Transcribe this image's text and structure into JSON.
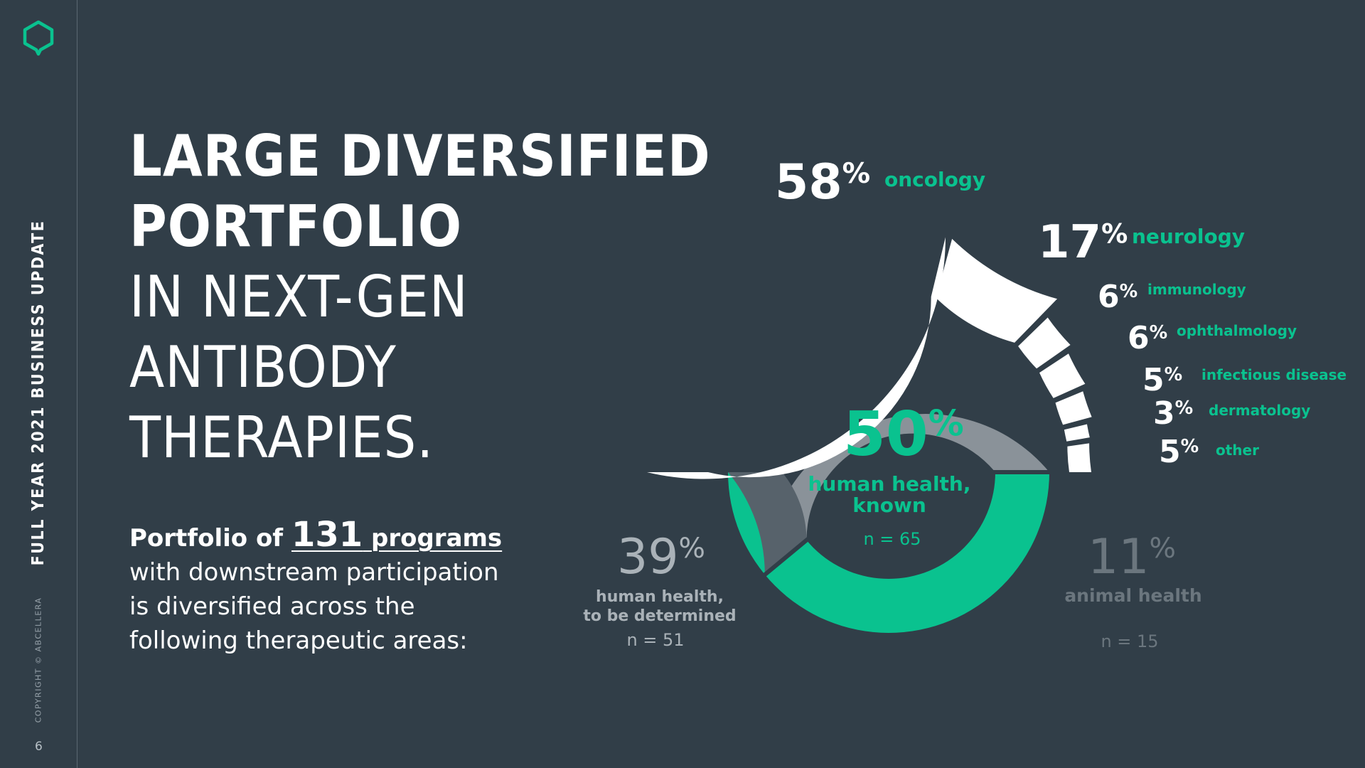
{
  "sidebar": {
    "vertical_title": "FULL YEAR 2021 BUSINESS UPDATE",
    "copyright": "COPYRIGHT © ABCELLERA",
    "page_number": "6",
    "logo_icon": "hexagon-logo-icon",
    "accent": "#0ac28f"
  },
  "heading": {
    "line1": "LARGE DIVERSIFIED",
    "line2": "PORTFOLIO",
    "line3": "IN NEXT-GEN",
    "line4": "ANTIBODY",
    "line5": "THERAPIES."
  },
  "description": {
    "lead_pre": "Portfolio of ",
    "lead_number": "131",
    "lead_post": " programs",
    "line1": "with downstream participation",
    "line2": "is diversified across the",
    "line3": "following therapeutic areas:"
  },
  "chart_data": [
    {
      "type": "pie",
      "subtype": "donut",
      "title": "",
      "slices": [
        {
          "label": "human health, known",
          "value": 50,
          "n_label": "n = 65",
          "color": "#0ac28f"
        },
        {
          "label": "human health, to be determined",
          "value": 39,
          "n_label": "n = 51",
          "color": "#8a9299"
        },
        {
          "label": "animal health",
          "value": 11,
          "n_label": "n = 15",
          "color": "#57626b"
        }
      ]
    },
    {
      "type": "pie",
      "subtype": "half-donut",
      "title": "",
      "slices": [
        {
          "label": "oncology",
          "value": 58
        },
        {
          "label": "neurology",
          "value": 17
        },
        {
          "label": "immunology",
          "value": 6
        },
        {
          "label": "ophthalmology",
          "value": 6
        },
        {
          "label": "infectious disease",
          "value": 5
        },
        {
          "label": "dermatology",
          "value": 3
        },
        {
          "label": "other",
          "value": 5
        }
      ],
      "color": "#ffffff",
      "label_color": "#0ac28f"
    }
  ]
}
